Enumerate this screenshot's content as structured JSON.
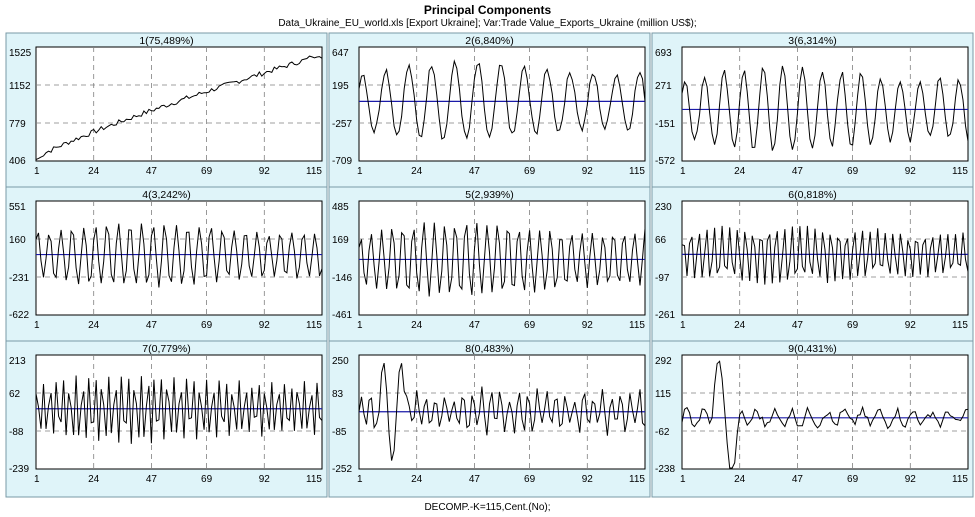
{
  "title": "Principal Components",
  "subtitle": "Data_Ukraine_EU_world.xls [Export Ukraine];    Var:Trade Value_Exports_Ukraine (million US$);",
  "footer": "DECOMP.-K=115,Cent.(No);",
  "colors": {
    "panel_bg": "#dff4f9",
    "panel_border": "#7a9aa6",
    "zero_line": "#1a1aa8",
    "series": "#000000",
    "grid": "#808080"
  },
  "x_ticks": [
    1,
    24,
    47,
    69,
    92,
    115
  ],
  "chart_data": [
    {
      "type": "line",
      "title": "1(75,489%)",
      "n": 115,
      "yticks": [
        "1525",
        "1152",
        "779",
        "406"
      ],
      "ylim": [
        406,
        1525
      ],
      "pattern": "trend",
      "zero_line": false
    },
    {
      "type": "line",
      "title": "2(6,840%)",
      "n": 115,
      "yticks": [
        "647",
        "195",
        "-257",
        "-709"
      ],
      "ylim": [
        -709,
        647
      ],
      "pattern": "osc",
      "period": 9.2,
      "amp": 420,
      "mean": 0,
      "zero_line": true
    },
    {
      "type": "line",
      "title": "3(6,314%)",
      "n": 115,
      "yticks": [
        "693",
        "271",
        "-151",
        "-572"
      ],
      "ylim": [
        -572,
        693
      ],
      "pattern": "osc",
      "period": 7.8,
      "amp": 420,
      "mean": 0,
      "zero_line": true
    },
    {
      "type": "line",
      "title": "4(3,242%)",
      "n": 115,
      "yticks": [
        "551",
        "160",
        "-231",
        "-622"
      ],
      "ylim": [
        -622,
        551
      ],
      "pattern": "osc",
      "period": 4.6,
      "amp": 300,
      "mean": 0,
      "zero_line": true
    },
    {
      "type": "line",
      "title": "5(2,939%)",
      "n": 115,
      "yticks": [
        "485",
        "169",
        "-146",
        "-461"
      ],
      "ylim": [
        -461,
        485
      ],
      "pattern": "osc",
      "period": 4.2,
      "amp": 280,
      "mean": 0,
      "zero_line": true
    },
    {
      "type": "line",
      "title": "6(0,818%)",
      "n": 115,
      "yticks": [
        "230",
        "66",
        "-97",
        "-261"
      ],
      "ylim": [
        -261,
        230
      ],
      "pattern": "osc",
      "period": 3.1,
      "amp": 120,
      "mean": 0,
      "zero_line": true
    },
    {
      "type": "line",
      "title": "7(0,779%)",
      "n": 115,
      "yticks": [
        "213",
        "62",
        "-88",
        "-239"
      ],
      "ylim": [
        -239,
        213
      ],
      "pattern": "osc",
      "period": 2.6,
      "amp": 130,
      "mean": 0,
      "zero_line": true
    },
    {
      "type": "line",
      "title": "8(0,483%)",
      "n": 115,
      "yticks": [
        "250",
        "83",
        "-85",
        "-252"
      ],
      "ylim": [
        -252,
        250
      ],
      "pattern": "noise",
      "amp": 70,
      "mean": 0,
      "zero_line": true
    },
    {
      "type": "line",
      "title": "9(0,431%)",
      "n": 115,
      "yticks": [
        "292",
        "115",
        "-62",
        "-238"
      ],
      "ylim": [
        -238,
        292
      ],
      "pattern": "noise2",
      "amp": 50,
      "mean": 0,
      "zero_line": true
    }
  ]
}
